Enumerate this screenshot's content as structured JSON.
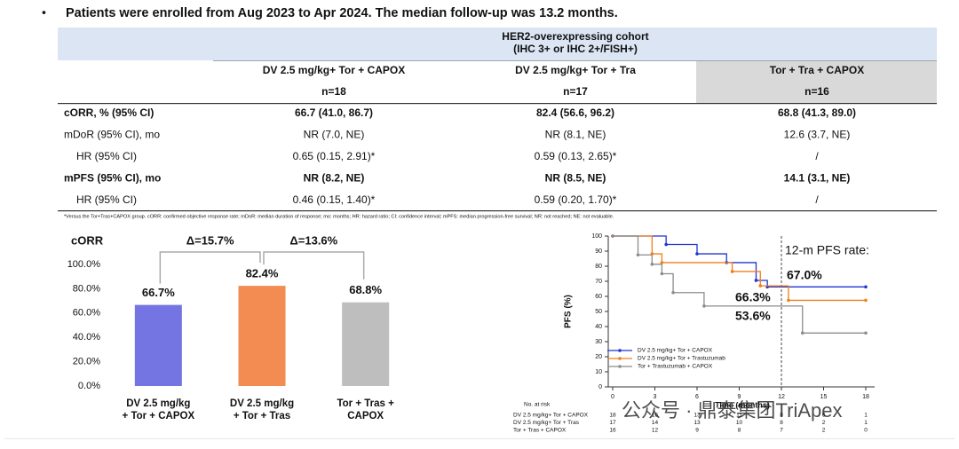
{
  "header": {
    "bullet": "Patients were enrolled from Aug 2023 to Apr 2024. The median follow-up was 13.2 months."
  },
  "table": {
    "group_header": [
      "HER2-overexpressing cohort",
      "(IHC 3+ or IHC 2+/FISH+)"
    ],
    "columns": [
      {
        "name": "DV 2.5 mg/kg+ Tor + CAPOX",
        "n": "n=18"
      },
      {
        "name": "DV 2.5 mg/kg+ Tor + Tra",
        "n": "n=17"
      },
      {
        "name": "Tor + Tra + CAPOX",
        "n": "n=16"
      }
    ],
    "rows": [
      {
        "cells": [
          "cORR, % (95% CI)",
          "66.7 (41.0, 86.7)",
          "82.4 (56.6, 96.2)",
          "68.8 (41.3, 89.0)"
        ],
        "bold": true
      },
      {
        "cells": [
          "mDoR (95% CI), mo",
          "NR (7.0, NE)",
          "NR (8.1, NE)",
          "12.6 (3.7, NE)"
        ]
      },
      {
        "cells": [
          "HR (95% CI)",
          "0.65 (0.15, 2.91)*",
          "0.59 (0.13, 2.65)*",
          "/"
        ],
        "indent": true
      },
      {
        "cells": [
          "mPFS (95% CI), mo",
          "NR (8.2, NE)",
          "NR (8.5, NE)",
          "14.1 (3.1, NE)"
        ],
        "bold": true
      },
      {
        "cells": [
          "HR (95% CI)",
          "0.46 (0.15, 1.40)*",
          "0.59 (0.20, 1.70)*",
          "/"
        ],
        "indent": true
      }
    ],
    "footnote": "*Versus the Tor+Tras+CAPOX group. cORR: confirmed objective response rate; mDoR: median duration of response; mo: months; HR: hazard ratio; CI: confidence interval; mPFS: median progression-free survival; NR: not reached; NE: not evaluable."
  },
  "chart_data": [
    {
      "type": "bar",
      "y_label": "cORR",
      "categories": [
        [
          "DV 2.5 mg/kg",
          "+ Tor + CAPOX"
        ],
        [
          "DV 2.5 mg/kg",
          "+ Tor + Tras"
        ],
        [
          "Tor + Tras +",
          "CAPOX"
        ]
      ],
      "values": [
        66.7,
        82.4,
        68.8
      ],
      "value_labels": [
        "66.7%",
        "82.4%",
        "68.8%"
      ],
      "colors": [
        "#7474e2",
        "#f28c52",
        "#bebebe"
      ],
      "ylim": [
        0,
        100
      ],
      "yticks": [
        {
          "value": 0,
          "label": "0.0%"
        },
        {
          "value": 20,
          "label": "20.0%"
        },
        {
          "value": 40,
          "label": "40.0%"
        },
        {
          "value": 60,
          "label": "60.0%"
        },
        {
          "value": 80,
          "label": "80.0%"
        },
        {
          "value": 100,
          "label": "100.0%"
        }
      ],
      "deltas": [
        "Δ=15.7%",
        "Δ=13.6%"
      ]
    },
    {
      "type": "line",
      "step": "post",
      "y_label": "PFS (%)",
      "x_label": "Time (months)",
      "xlim": [
        0,
        18
      ],
      "ylim": [
        0,
        100
      ],
      "xticks": [
        0,
        3,
        6,
        9,
        12,
        15,
        18
      ],
      "yticks": [
        0,
        10,
        20,
        30,
        40,
        50,
        60,
        70,
        80,
        90,
        100
      ],
      "reference_x": 12,
      "series": [
        {
          "name": "DV 2.5 mg/kg+ Tor + CAPOX",
          "color": "#1f35d0",
          "x": [
            0,
            3.8,
            6,
            8.1,
            10.2,
            11,
            18
          ],
          "values": [
            100,
            94.4,
            88.2,
            82.4,
            70.6,
            66.3,
            66.3
          ]
        },
        {
          "name": "DV 2.5 mg/kg+ Tor + Trastuzumab",
          "color": "#f07f1a",
          "x": [
            0,
            2.8,
            3.5,
            8.5,
            10.5,
            12.5,
            18
          ],
          "values": [
            100,
            88.2,
            82.4,
            76.5,
            67,
            57.4,
            57.4
          ]
        },
        {
          "name": "Tor + Trastuzumab + CAPOX",
          "color": "#8c8c8c",
          "x": [
            0,
            1.8,
            2.8,
            3.5,
            4.3,
            6.5,
            13.5,
            18
          ],
          "values": [
            100,
            87.5,
            81.3,
            75,
            62.5,
            53.6,
            35.7,
            35.7
          ]
        }
      ],
      "annotations": [
        {
          "text": "12-m PFS rate:",
          "color": "#707070"
        },
        {
          "text": "67.0%",
          "color": "#f07f1a"
        },
        {
          "text": "66.3%",
          "color": "#3a48d8"
        },
        {
          "text": "53.6%",
          "color": "#8c8c8c"
        }
      ],
      "risk_table": {
        "title": "No. at risk",
        "rows": [
          {
            "name": "DV 2.5 mg/kg+ Tor + CAPOX",
            "values": [
              18,
              16,
              13,
              11,
              8,
              6,
              1
            ]
          },
          {
            "name": "DV 2.5 mg/kg+ Tor + Tras",
            "values": [
              17,
              14,
              13,
              10,
              8,
              2,
              1
            ]
          },
          {
            "name": "Tor + Tras + CAPOX",
            "values": [
              16,
              12,
              9,
              8,
              7,
              2,
              0
            ]
          }
        ]
      }
    }
  ],
  "watermark": "公众号 · 鼎泰集团TriApex"
}
